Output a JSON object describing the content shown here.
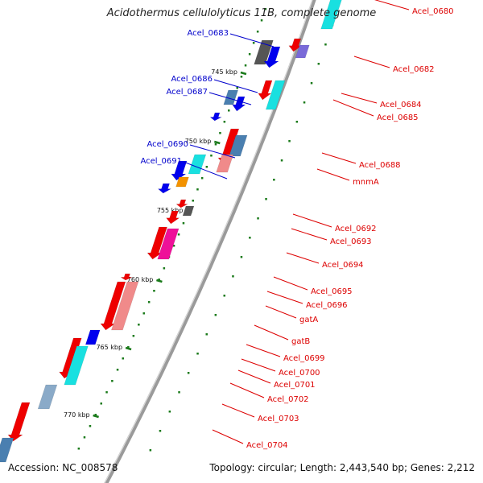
{
  "title": "Acidothermus cellulolyticus 11B, complete genome",
  "accession_text": "Accession: NC_008578",
  "topology_text": "Topology: circular; Length: 2,443,540 bp; Genes: 2,212",
  "colors": {
    "forward_label": "#0000cc",
    "reverse_label": "#dd0000",
    "backbone": "#9a9a9a",
    "ticks": "#1a7a1a"
  },
  "scale_ticks": [
    {
      "label": "745 kbp"
    },
    {
      "label": "750 kbp"
    },
    {
      "label": "755 kbp"
    },
    {
      "label": "760 kbp"
    },
    {
      "label": "765 kbp"
    },
    {
      "label": "770 kbp"
    }
  ],
  "forward_genes": [
    {
      "label": "Acel_0683"
    },
    {
      "label": "Acel_0686"
    },
    {
      "label": "Acel_0687"
    },
    {
      "label": "Acel_0690"
    },
    {
      "label": "Acel_0691"
    }
  ],
  "reverse_genes": [
    {
      "label": "Acel_0680"
    },
    {
      "label": "Acel_0682"
    },
    {
      "label": "Acel_0684"
    },
    {
      "label": "Acel_0685"
    },
    {
      "label": "Acel_0688"
    },
    {
      "label": "mnmA"
    },
    {
      "label": "Acel_0692"
    },
    {
      "label": "Acel_0693"
    },
    {
      "label": "Acel_0694"
    },
    {
      "label": "Acel_0695"
    },
    {
      "label": "Acel_0696"
    },
    {
      "label": "gatA"
    },
    {
      "label": "gatB"
    },
    {
      "label": "Acel_0699"
    },
    {
      "label": "Acel_0700"
    },
    {
      "label": "Acel_0701"
    },
    {
      "label": "Acel_0702"
    },
    {
      "label": "Acel_0703"
    },
    {
      "label": "Acel_0704"
    }
  ]
}
